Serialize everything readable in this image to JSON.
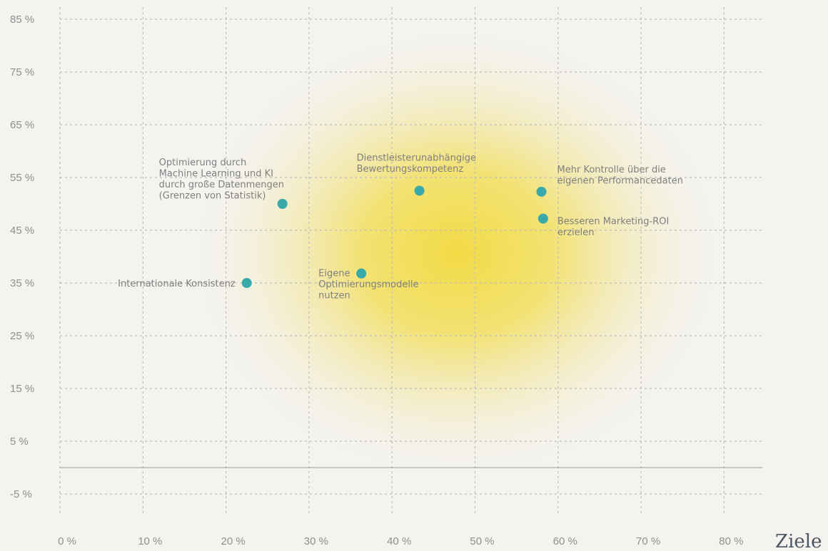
{
  "chart_data": {
    "type": "scatter",
    "corner_label": "Ziele",
    "x_ticks": [
      "0 %",
      "10 %",
      "20 %",
      "30 %",
      "40 %",
      "50 %",
      "60 %",
      "70 %",
      "80 %"
    ],
    "y_ticks": [
      "85 %",
      "75 %",
      "65 %",
      "55 %",
      "45 %",
      "35 %",
      "25 %",
      "15 %",
      "5 %",
      "-5 %"
    ],
    "xlim": [
      -1,
      84
    ],
    "ylim": [
      -9,
      89
    ],
    "x_tick_values": [
      0,
      10,
      20,
      30,
      40,
      50,
      60,
      70,
      80
    ],
    "y_tick_values": [
      85,
      75,
      65,
      55,
      45,
      35,
      25,
      15,
      5,
      -5
    ],
    "grid": true,
    "points": [
      {
        "x": 26.8,
        "y": 50.0,
        "label": [
          "Optimierung durch",
          "Machine Learning und KI",
          "durch große Datenmengen",
          "(Grenzen von Statistik)"
        ],
        "label_side": "upper-left"
      },
      {
        "x": 43.3,
        "y": 52.5,
        "label": [
          "Dienstleisterunabhängige",
          "Bewertungskompetenz"
        ],
        "label_side": "above"
      },
      {
        "x": 58.0,
        "y": 52.3,
        "label": [
          "Mehr Kontrolle über die",
          "eigenen Performancedaten"
        ],
        "label_side": "upper-right"
      },
      {
        "x": 58.2,
        "y": 47.2,
        "label": [
          "Besseren Marketing-ROI",
          "erzielen"
        ],
        "label_side": "right"
      },
      {
        "x": 22.5,
        "y": 35.0,
        "label": [
          "Internationale Konsistenz"
        ],
        "label_side": "left"
      },
      {
        "x": 36.3,
        "y": 36.8,
        "label": [
          "Eigene",
          "Optimierungsmodelle",
          "nutzen"
        ],
        "label_side": "lower-left"
      }
    ],
    "colors": {
      "background": "#f4f3f0",
      "point": "#3aa9a9",
      "grid": "#bdbdbd",
      "heat": "#f2d93c"
    }
  }
}
